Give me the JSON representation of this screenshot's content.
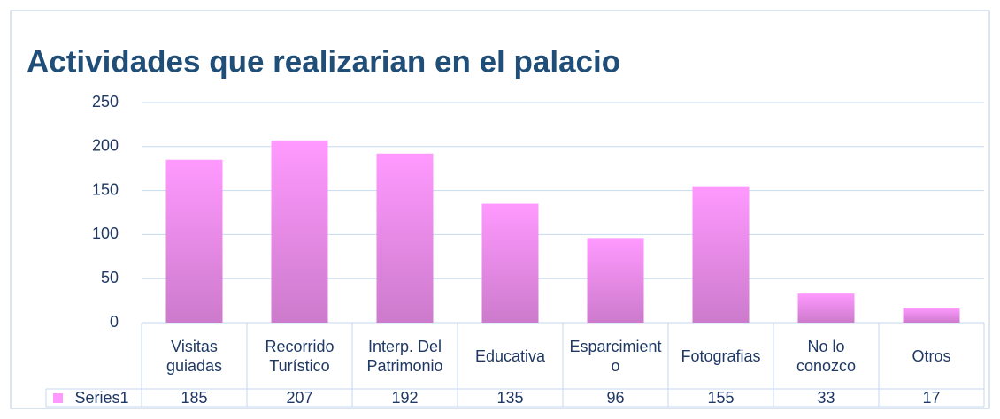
{
  "chart_data": {
    "type": "bar",
    "title": "Actividades que realizarian en el palacio",
    "categories": [
      "Visitas guiadas",
      "Recorrido Turístico",
      "Interp. Del Patrimonio",
      "Educativa",
      "Esparcimiento",
      "Fotografias",
      "No lo conozco",
      "Otros"
    ],
    "series": [
      {
        "name": "Series1",
        "color": "#ff99ff",
        "values": [
          185,
          207,
          192,
          135,
          96,
          155,
          33,
          17
        ]
      }
    ],
    "ylim": [
      0,
      250
    ],
    "yticks": [
      0,
      50,
      100,
      150,
      200,
      250
    ],
    "grid": true
  }
}
